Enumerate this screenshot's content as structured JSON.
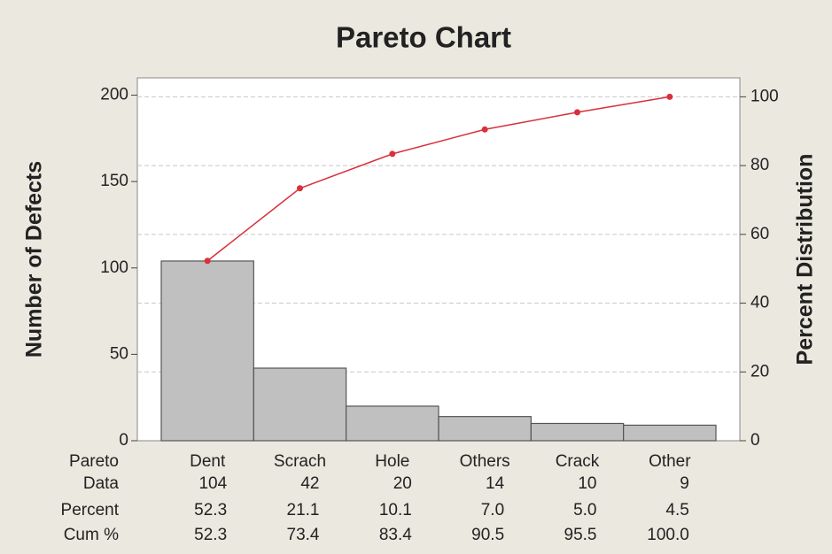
{
  "chart_data": {
    "type": "pareto",
    "title": "Pareto Chart",
    "y_label": "Number of Defects",
    "y2_label": "Percent Distribution",
    "category_label": "Pareto",
    "categories": [
      "Dent",
      "Scrach",
      "Hole",
      "Others",
      "Crack",
      "Other"
    ],
    "series": [
      {
        "name": "Data",
        "color": "#c0c0c0",
        "values": [
          104,
          42,
          20,
          14,
          10,
          9
        ]
      },
      {
        "name": "Percent",
        "values": [
          52.3,
          21.1,
          10.1,
          7.0,
          5.0,
          4.5
        ],
        "value_labels": [
          "52.3",
          "21.1",
          "10.1",
          "7.0",
          "5.0",
          "4.5"
        ]
      },
      {
        "name": "Cum %",
        "color": "#d9303a",
        "axis": "y2",
        "values": [
          52.3,
          73.4,
          83.4,
          90.5,
          95.5,
          100.0
        ],
        "value_labels": [
          "52.3",
          "73.4",
          "83.4",
          "90.5",
          "95.5",
          "100.0"
        ]
      }
    ],
    "ylim": [
      0,
      210
    ],
    "yticks": [
      0,
      50,
      100,
      150,
      200
    ],
    "y2lim": [
      0,
      105.5
    ],
    "y2ticks": [
      0,
      20,
      40,
      60,
      80,
      100
    ],
    "grid": true
  }
}
